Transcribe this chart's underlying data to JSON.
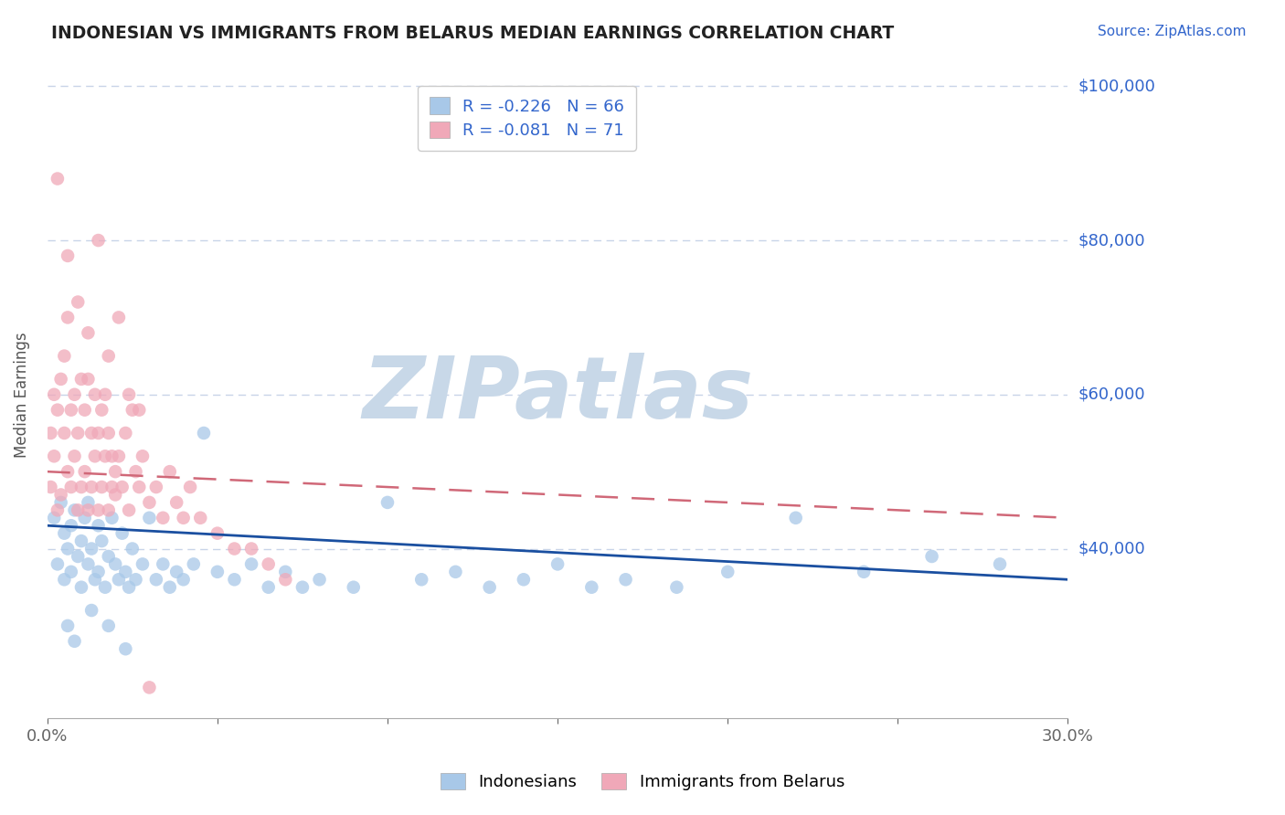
{
  "title": "INDONESIAN VS IMMIGRANTS FROM BELARUS MEDIAN EARNINGS CORRELATION CHART",
  "source": "Source: ZipAtlas.com",
  "xlabel": "",
  "ylabel": "Median Earnings",
  "xmin": 0.0,
  "xmax": 0.3,
  "ymin": 18000,
  "ymax": 102000,
  "yticks": [
    40000,
    60000,
    80000,
    100000
  ],
  "ytick_labels": [
    "$40,000",
    "$60,000",
    "$80,000",
    "$100,000"
  ],
  "xticks": [
    0.0,
    0.05,
    0.1,
    0.15,
    0.2,
    0.25,
    0.3
  ],
  "xtick_labels": [
    "0.0%",
    "",
    "",
    "",
    "",
    "",
    "30.0%"
  ],
  "blue_R": -0.226,
  "blue_N": 66,
  "pink_R": -0.081,
  "pink_N": 71,
  "blue_color": "#a8c8e8",
  "pink_color": "#f0a8b8",
  "blue_line_color": "#1a4fa0",
  "pink_line_color": "#d06878",
  "legend_label_blue": "Indonesians",
  "legend_label_pink": "Immigrants from Belarus",
  "watermark": "ZIPatlas",
  "watermark_color": "#c8d8e8",
  "background_color": "#ffffff",
  "grid_color": "#c8d4e8",
  "title_color": "#222222",
  "axis_label_color": "#3366cc",
  "blue_trend_x0": 0.0,
  "blue_trend_y0": 43000,
  "blue_trend_x1": 0.3,
  "blue_trend_y1": 36000,
  "pink_trend_x0": 0.0,
  "pink_trend_y0": 50000,
  "pink_trend_x1": 0.3,
  "pink_trend_y1": 44000,
  "blue_scatter_x": [
    0.002,
    0.003,
    0.004,
    0.005,
    0.005,
    0.006,
    0.007,
    0.007,
    0.008,
    0.009,
    0.01,
    0.01,
    0.011,
    0.012,
    0.012,
    0.013,
    0.014,
    0.015,
    0.015,
    0.016,
    0.017,
    0.018,
    0.019,
    0.02,
    0.021,
    0.022,
    0.023,
    0.024,
    0.025,
    0.026,
    0.028,
    0.03,
    0.032,
    0.034,
    0.036,
    0.038,
    0.04,
    0.043,
    0.046,
    0.05,
    0.055,
    0.06,
    0.065,
    0.07,
    0.075,
    0.08,
    0.09,
    0.1,
    0.11,
    0.12,
    0.13,
    0.14,
    0.15,
    0.16,
    0.17,
    0.185,
    0.2,
    0.22,
    0.24,
    0.26,
    0.28,
    0.006,
    0.008,
    0.013,
    0.018,
    0.023
  ],
  "blue_scatter_y": [
    44000,
    38000,
    46000,
    42000,
    36000,
    40000,
    43000,
    37000,
    45000,
    39000,
    41000,
    35000,
    44000,
    38000,
    46000,
    40000,
    36000,
    43000,
    37000,
    41000,
    35000,
    39000,
    44000,
    38000,
    36000,
    42000,
    37000,
    35000,
    40000,
    36000,
    38000,
    44000,
    36000,
    38000,
    35000,
    37000,
    36000,
    38000,
    55000,
    37000,
    36000,
    38000,
    35000,
    37000,
    35000,
    36000,
    35000,
    46000,
    36000,
    37000,
    35000,
    36000,
    38000,
    35000,
    36000,
    35000,
    37000,
    44000,
    37000,
    39000,
    38000,
    30000,
    28000,
    32000,
    30000,
    27000
  ],
  "pink_scatter_x": [
    0.001,
    0.001,
    0.002,
    0.002,
    0.003,
    0.003,
    0.004,
    0.004,
    0.005,
    0.005,
    0.006,
    0.006,
    0.007,
    0.007,
    0.008,
    0.008,
    0.009,
    0.009,
    0.01,
    0.01,
    0.011,
    0.011,
    0.012,
    0.012,
    0.013,
    0.013,
    0.014,
    0.014,
    0.015,
    0.015,
    0.016,
    0.016,
    0.017,
    0.017,
    0.018,
    0.018,
    0.019,
    0.019,
    0.02,
    0.02,
    0.021,
    0.022,
    0.023,
    0.024,
    0.025,
    0.026,
    0.027,
    0.028,
    0.03,
    0.032,
    0.034,
    0.036,
    0.038,
    0.04,
    0.042,
    0.045,
    0.05,
    0.055,
    0.06,
    0.065,
    0.07,
    0.003,
    0.006,
    0.009,
    0.012,
    0.015,
    0.018,
    0.021,
    0.024,
    0.027,
    0.03
  ],
  "pink_scatter_y": [
    48000,
    55000,
    52000,
    60000,
    45000,
    58000,
    62000,
    47000,
    55000,
    65000,
    50000,
    70000,
    58000,
    48000,
    52000,
    60000,
    45000,
    55000,
    62000,
    48000,
    50000,
    58000,
    45000,
    62000,
    55000,
    48000,
    52000,
    60000,
    45000,
    55000,
    58000,
    48000,
    52000,
    60000,
    45000,
    55000,
    48000,
    52000,
    50000,
    47000,
    52000,
    48000,
    55000,
    45000,
    58000,
    50000,
    48000,
    52000,
    46000,
    48000,
    44000,
    50000,
    46000,
    44000,
    48000,
    44000,
    42000,
    40000,
    40000,
    38000,
    36000,
    88000,
    78000,
    72000,
    68000,
    80000,
    65000,
    70000,
    60000,
    58000,
    22000
  ]
}
